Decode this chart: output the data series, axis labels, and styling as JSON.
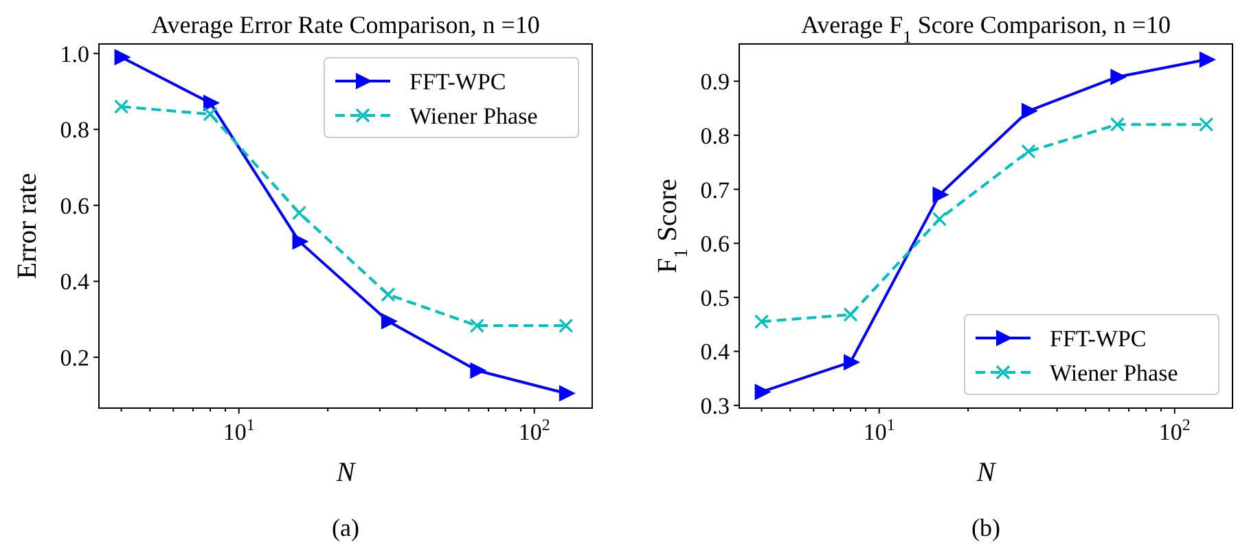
{
  "chart_data": [
    {
      "type": "line",
      "title": "Average Error Rate Comparison, n =10",
      "xlabel": "N",
      "ylabel": "Error rate",
      "log": "x",
      "x": [
        4,
        8,
        16,
        32,
        64,
        128
      ],
      "series": [
        {
          "name": "FFT-WPC",
          "color": "#0000ff",
          "marker": "triangle",
          "line_style": "solid",
          "values": [
            0.99,
            0.87,
            0.505,
            0.295,
            0.165,
            0.105
          ]
        },
        {
          "name": "Wiener Phase",
          "color": "#00bfbf",
          "marker": "cross",
          "line_style": "dashed",
          "values": [
            0.86,
            0.84,
            0.58,
            0.365,
            0.283,
            0.283
          ]
        }
      ],
      "xlim": [
        3.36,
        157
      ],
      "ylim": [
        0.066,
        1.025
      ],
      "xticks": [
        {
          "value": 4,
          "label": null
        },
        {
          "value": 5,
          "label": null
        },
        {
          "value": 6,
          "label": null
        },
        {
          "value": 7,
          "label": null
        },
        {
          "value": 8,
          "label": null
        },
        {
          "value": 9,
          "label": null
        },
        {
          "value": 10,
          "label": "10$^{1}$"
        },
        {
          "value": 20,
          "label": null
        },
        {
          "value": 30,
          "label": null
        },
        {
          "value": 40,
          "label": null
        },
        {
          "value": 50,
          "label": null
        },
        {
          "value": 60,
          "label": null
        },
        {
          "value": 70,
          "label": null
        },
        {
          "value": 80,
          "label": null
        },
        {
          "value": 90,
          "label": null
        },
        {
          "value": 100,
          "label": "10$^{2}$"
        }
      ],
      "yticks": [
        {
          "value": 0.2,
          "label": "0.2"
        },
        {
          "value": 0.4,
          "label": "0.4"
        },
        {
          "value": 0.6,
          "label": "0.6"
        },
        {
          "value": 0.8,
          "label": "0.8"
        },
        {
          "value": 1.0,
          "label": "1.0"
        }
      ],
      "grid": false,
      "legend": "top right",
      "annotations": [
        "(a)"
      ]
    },
    {
      "type": "line",
      "title": "Average F$_{1}$ Score Comparison, n =10",
      "xlabel": "N",
      "ylabel": "F$_{1}$ Score",
      "log": "x",
      "x": [
        4,
        8,
        16,
        32,
        64,
        128
      ],
      "series": [
        {
          "name": "FFT-WPC",
          "color": "#0000ff",
          "marker": "triangle",
          "line_style": "solid",
          "values": [
            0.325,
            0.38,
            0.69,
            0.845,
            0.908,
            0.94
          ]
        },
        {
          "name": "Wiener Phase",
          "color": "#00bfbf",
          "marker": "cross",
          "line_style": "dashed",
          "values": [
            0.455,
            0.468,
            0.645,
            0.77,
            0.82,
            0.82
          ]
        }
      ],
      "xlim": [
        3.36,
        157
      ],
      "ylim": [
        0.295,
        0.969
      ],
      "xticks": [
        {
          "value": 4,
          "label": null
        },
        {
          "value": 5,
          "label": null
        },
        {
          "value": 6,
          "label": null
        },
        {
          "value": 7,
          "label": null
        },
        {
          "value": 8,
          "label": null
        },
        {
          "value": 9,
          "label": null
        },
        {
          "value": 10,
          "label": "10$^{1}$"
        },
        {
          "value": 20,
          "label": null
        },
        {
          "value": 30,
          "label": null
        },
        {
          "value": 40,
          "label": null
        },
        {
          "value": 50,
          "label": null
        },
        {
          "value": 60,
          "label": null
        },
        {
          "value": 70,
          "label": null
        },
        {
          "value": 80,
          "label": null
        },
        {
          "value": 90,
          "label": null
        },
        {
          "value": 100,
          "label": "10$^{2}$"
        }
      ],
      "yticks": [
        {
          "value": 0.3,
          "label": "0.3"
        },
        {
          "value": 0.4,
          "label": "0.4"
        },
        {
          "value": 0.5,
          "label": "0.5"
        },
        {
          "value": 0.6,
          "label": "0.6"
        },
        {
          "value": 0.7,
          "label": "0.7"
        },
        {
          "value": 0.8,
          "label": "0.8"
        },
        {
          "value": 0.9,
          "label": "0.9"
        }
      ],
      "grid": false,
      "legend": "bottom right",
      "annotations": [
        "(b)"
      ]
    }
  ]
}
